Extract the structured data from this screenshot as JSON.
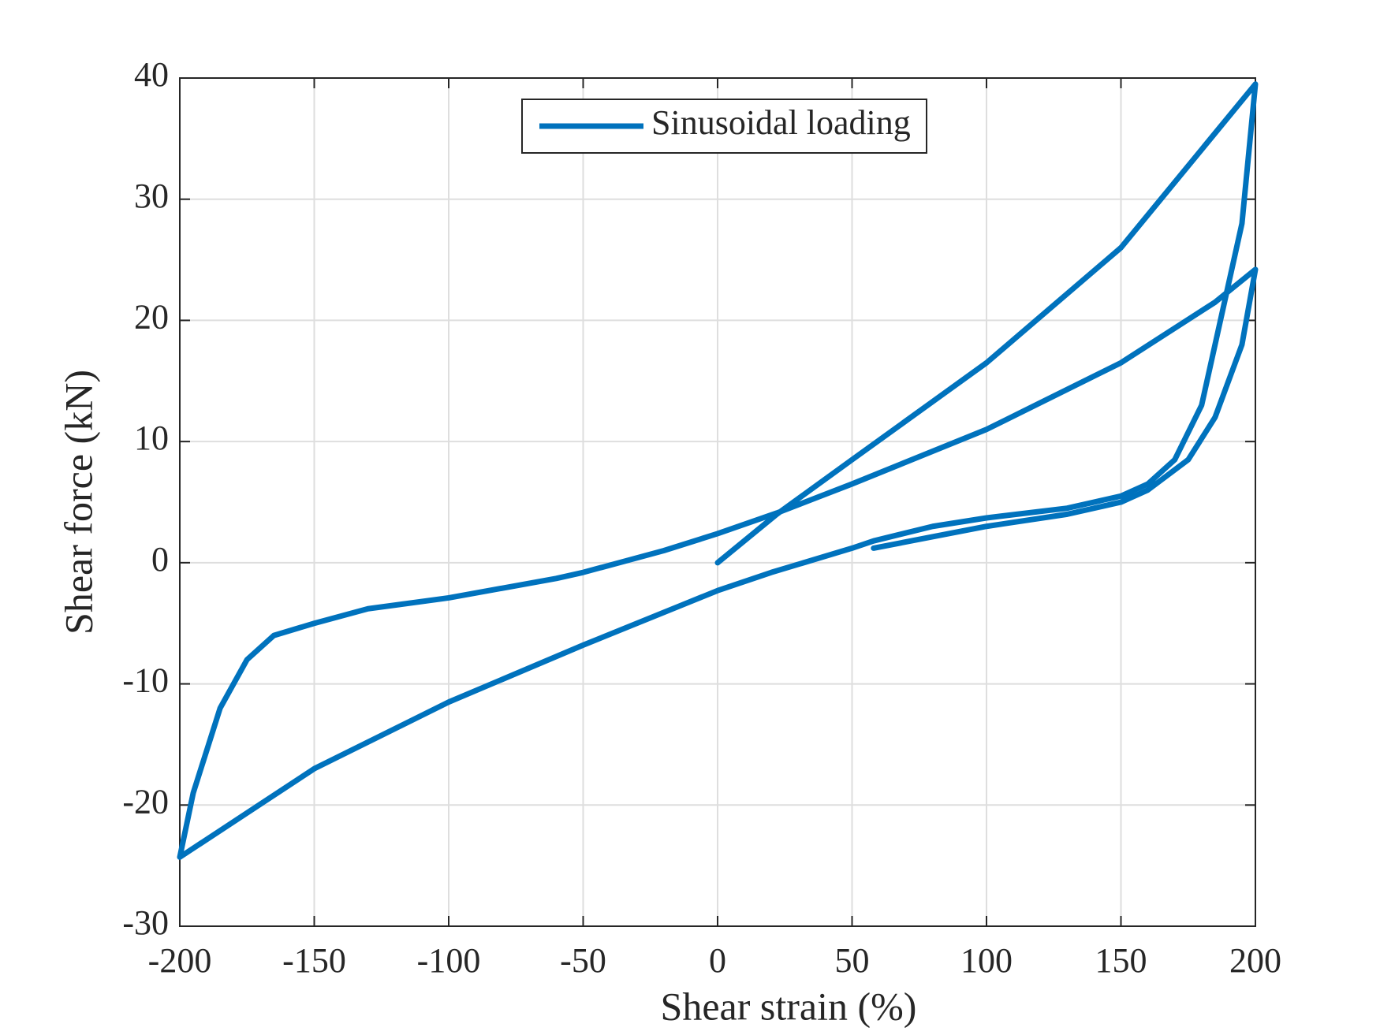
{
  "chart_data": {
    "type": "line",
    "xlabel": "Shear strain (%)",
    "ylabel": "Shear force (kN)",
    "x": [
      0,
      22,
      50,
      100,
      150,
      200,
      195,
      187,
      180,
      170,
      160,
      150,
      130,
      100,
      80,
      58,
      50,
      20,
      0,
      -50,
      -100,
      -150,
      -200,
      -195,
      -185,
      -175,
      -165,
      -150,
      -130,
      -100,
      -60,
      -50,
      -20,
      0,
      22,
      50,
      100,
      150,
      185,
      200,
      195,
      185,
      175,
      160,
      150,
      130,
      100,
      58
    ],
    "series": [
      {
        "name": "Sinusoidal loading",
        "color": "#0072bd",
        "values": [
          0,
          4,
          8.5,
          16.5,
          26,
          39.5,
          28,
          20,
          13,
          8.5,
          6.5,
          5.5,
          4.5,
          3.7,
          3,
          1.8,
          1.2,
          -0.8,
          -2.3,
          -6.8,
          -11.5,
          -17,
          -24.3,
          -19,
          -12,
          -8,
          -6,
          -5,
          -3.8,
          -2.9,
          -1.3,
          -0.8,
          1,
          2.4,
          4.1,
          6.5,
          11,
          16.5,
          21.5,
          24.2,
          18,
          12,
          8.5,
          6,
          5,
          4,
          3,
          1.2
        ]
      }
    ],
    "xlim": [
      -200,
      200
    ],
    "xticks": [
      -200,
      -150,
      -100,
      -50,
      0,
      50,
      100,
      150,
      200
    ],
    "ylim": [
      -30,
      40
    ],
    "yticks": [
      -30,
      -20,
      -10,
      0,
      10,
      20,
      30,
      40
    ],
    "grid": true,
    "legend": "top"
  }
}
